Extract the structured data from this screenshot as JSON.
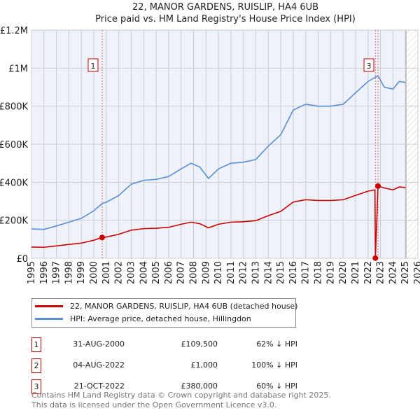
{
  "colors": {
    "property": "#cc0000",
    "hpi": "#5b8dd6",
    "bg": "#eef3fb"
  },
  "chart_data": {
    "type": "line",
    "title": "22, MANOR GARDENS, RUISLIP, HA4 6UB",
    "subtitle": "Price paid vs. HM Land Registry's House Price Index (HPI)",
    "xlim": [
      1995,
      2026
    ],
    "ylim": [
      0,
      1200000
    ],
    "x_ticks": [
      "1995",
      "1996",
      "1997",
      "1998",
      "1999",
      "2000",
      "2001",
      "2002",
      "2003",
      "2004",
      "2005",
      "2006",
      "2007",
      "2008",
      "2009",
      "2010",
      "2011",
      "2012",
      "2013",
      "2014",
      "2015",
      "2016",
      "2017",
      "2018",
      "2019",
      "2020",
      "2021",
      "2022",
      "2023",
      "2024",
      "2025",
      "2026"
    ],
    "y_ticks": [
      {
        "v": 0,
        "label": "£0"
      },
      {
        "v": 200000,
        "label": "£200K"
      },
      {
        "v": 400000,
        "label": "£400K"
      },
      {
        "v": 600000,
        "label": "£600K"
      },
      {
        "v": 800000,
        "label": "£800K"
      },
      {
        "v": 1000000,
        "label": "£1M"
      },
      {
        "v": 1200000,
        "label": "£1.2M"
      }
    ],
    "series": [
      {
        "name": "22, MANOR GARDENS, RUISLIP, HA4 6UB (detached house)",
        "x": [
          1995,
          1996,
          1997,
          1998,
          1999,
          2000,
          2000.67,
          2001,
          2002,
          2003,
          2004,
          2005,
          2006,
          2007,
          2007.8,
          2008.5,
          2009.2,
          2010,
          2011,
          2012,
          2013,
          2014,
          2015,
          2016,
          2017,
          2018,
          2019,
          2020,
          2021,
          2022,
          2022.55,
          2022.59,
          2022.8,
          2023.3,
          2024,
          2024.5,
          2025
        ],
        "values": [
          59000,
          58000,
          65000,
          73000,
          80000,
          95000,
          109500,
          112000,
          126000,
          148000,
          156000,
          158000,
          163000,
          179000,
          190000,
          182000,
          160000,
          179000,
          190000,
          192000,
          198000,
          224000,
          247000,
          296000,
          308000,
          304000,
          304000,
          308000,
          331000,
          353000,
          360000,
          1000,
          380000,
          370000,
          360000,
          375000,
          372000
        ]
      },
      {
        "name": "HPI: Average price, detached house, Hillingdon",
        "x": [
          1995,
          1996,
          1997,
          1998,
          1999,
          2000,
          2000.67,
          2001,
          2002,
          2003,
          2004,
          2005,
          2006,
          2007,
          2007.8,
          2008.5,
          2009.2,
          2010,
          2011,
          2012,
          2013,
          2014,
          2015,
          2016,
          2017,
          2018,
          2019,
          2020,
          2021,
          2022,
          2022.8,
          2023.3,
          2024,
          2024.5,
          2025
        ],
        "values": [
          155000,
          152000,
          170000,
          190000,
          210000,
          250000,
          288000,
          295000,
          330000,
          390000,
          410000,
          415000,
          430000,
          470000,
          500000,
          480000,
          420000,
          470000,
          500000,
          505000,
          520000,
          590000,
          650000,
          780000,
          810000,
          800000,
          800000,
          810000,
          870000,
          930000,
          960000,
          900000,
          890000,
          930000,
          925000
        ]
      }
    ],
    "sales": [
      {
        "n": "1",
        "x": 2000.67,
        "y": 109500
      },
      {
        "n": "2",
        "x": 2022.59,
        "y": 1000
      },
      {
        "n": "3",
        "x": 2022.8,
        "y": 380000
      }
    ],
    "legend_placement": "bottom"
  },
  "transactions": [
    {
      "n": "1",
      "date": "31-AUG-2000",
      "price": "£109,500",
      "hpi": "62% ↓ HPI"
    },
    {
      "n": "2",
      "date": "04-AUG-2022",
      "price": "£1,000",
      "hpi": "100% ↓ HPI"
    },
    {
      "n": "3",
      "date": "21-OCT-2022",
      "price": "£380,000",
      "hpi": "60% ↓ HPI"
    }
  ],
  "footer": [
    "Contains HM Land Registry data © Crown copyright and database right 2025.",
    "This data is licensed under the Open Government Licence v3.0."
  ]
}
